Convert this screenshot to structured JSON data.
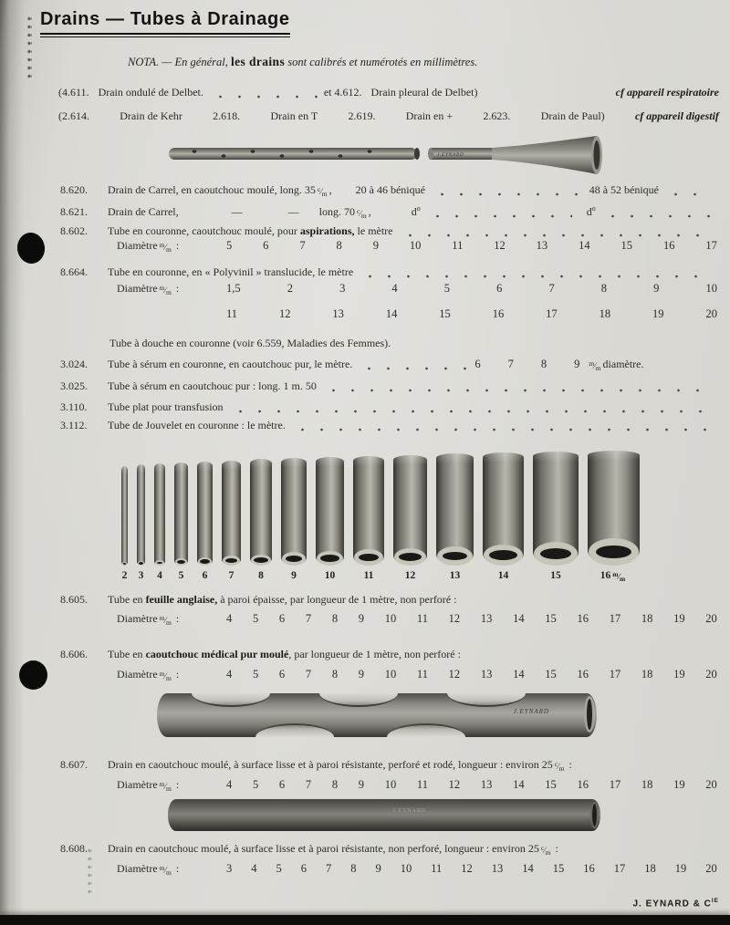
{
  "page": {
    "title": "Drains — Tubes à Drainage",
    "footer_main": "J. EYNARD & C",
    "footer_sup": "IE"
  },
  "units": {
    "mm": {
      "top": "m",
      "bot": "m"
    },
    "cm": {
      "top": "c",
      "bot": "m"
    }
  },
  "nota": {
    "label": "NOTA.",
    "dash": "—",
    "pre": "En général,",
    "bold": "les drains",
    "post": "sont calibrés et numérotés en millimètres."
  },
  "group_resp": {
    "n1": "(4.611.",
    "t1": "Drain ondulé de Delbet.",
    "n2": "et 4.612.",
    "t2": "Drain pleural de Delbet)",
    "cf": "cf appareil respiratoire"
  },
  "group_dig": {
    "n1": "(2.614.",
    "t1": "Drain de Kehr",
    "n2": "2.618.",
    "t2": "Drain en T",
    "n3": "2.619.",
    "t3": "Drain en +",
    "n4": "2.623.",
    "t4": "Drain de Paul)",
    "cf": "cf appareil digestif"
  },
  "brands": {
    "drain": "J.EYNARD",
    "perforated": "J.EYNARD",
    "smooth": "J.EYNARD"
  },
  "rows": {
    "r8620": {
      "num": "8.620.",
      "desc": "Drain de Carrel, en caoutchouc moulé, long. 35",
      "comma": ",",
      "r1": "20 à 46 béniqué",
      "r2": "48 à 52 béniqué"
    },
    "r8621": {
      "num": "8.621.",
      "desc": "Drain de Carrel,",
      "dash": "—",
      "long": "long. 70",
      "comma": ",",
      "ditto": "d",
      "ditto_sup": "o"
    },
    "r8602": {
      "num": "8.602.",
      "pre": "Tube en couronne, caoutchouc moulé, pour ",
      "bold": "aspirations,",
      "post": " le mètre"
    },
    "r8664": {
      "num": "8.664.",
      "desc": "Tube en couronne, en « Polyvinil » translucide, le mètre"
    },
    "douche": {
      "desc": "Tube à douche en couronne (voir 6.559, Maladies des Femmes)."
    },
    "r3024": {
      "num": "3.024.",
      "desc": "Tube à sérum en couronne, en caoutchouc pur, le mètre.",
      "tail": "diamètre."
    },
    "r3025": {
      "num": "3.025.",
      "desc": "Tube à sérum en caoutchouc pur : long. 1 m. 50"
    },
    "r3110": {
      "num": "3.110.",
      "desc": "Tube plat pour transfusion"
    },
    "r3112": {
      "num": "3.112.",
      "desc": "Tube de Jouvelet en couronne : le mètre."
    },
    "r8605": {
      "num": "8.605.",
      "pre": "Tube en ",
      "bold": "feuille anglaise,",
      "post": " à paroi épaisse, par longueur de 1 mètre, non perforé :"
    },
    "r8606": {
      "num": "8.606.",
      "pre": "Tube en ",
      "bold": "caoutchouc médical pur moulé",
      "post": ", par longueur de 1 mètre, non perforé :"
    },
    "r8607": {
      "num": "8.607.",
      "desc": "Drain en caoutchouc moulé, à surface lisse et à paroi résistante, perforé et rodé, longueur : environ 25",
      "colon": ":"
    },
    "r8608": {
      "num": "8.608.",
      "desc": "Drain en caoutchouc moulé, à surface lisse et à paroi résistante, non perforé, longueur : environ 25",
      "colon": ":"
    }
  },
  "diam": {
    "label": "Diamètre",
    "colon": ":",
    "r8602": [
      "5",
      "6",
      "7",
      "8",
      "9",
      "10",
      "11",
      "12",
      "13",
      "14",
      "15",
      "16",
      "17"
    ],
    "r8664a": [
      "1,5",
      "2",
      "3",
      "4",
      "5",
      "6",
      "7",
      "8",
      "9",
      "10"
    ],
    "r8664b": [
      "11",
      "12",
      "13",
      "14",
      "15",
      "16",
      "17",
      "18",
      "19",
      "20"
    ],
    "r3024": [
      "6",
      "7",
      "8",
      "9"
    ],
    "r8605": [
      "4",
      "5",
      "6",
      "7",
      "8",
      "9",
      "10",
      "11",
      "12",
      "13",
      "14",
      "15",
      "16",
      "17",
      "18",
      "19",
      "20"
    ],
    "r8606": [
      "4",
      "5",
      "6",
      "7",
      "8",
      "9",
      "10",
      "11",
      "12",
      "13",
      "14",
      "15",
      "16",
      "17",
      "18",
      "19",
      "20"
    ],
    "r8607": [
      "4",
      "5",
      "6",
      "7",
      "8",
      "9",
      "10",
      "11",
      "12",
      "13",
      "14",
      "15",
      "16",
      "17",
      "18",
      "19",
      "20"
    ],
    "r8608": [
      "3",
      "4",
      "5",
      "6",
      "7",
      "8",
      "9",
      "10",
      "11",
      "12",
      "13",
      "14",
      "15",
      "16",
      "17",
      "18",
      "19",
      "20"
    ]
  },
  "tube_figure": {
    "labels": [
      "2",
      "3",
      "4",
      "5",
      "6",
      "7",
      "8",
      "9",
      "10",
      "11",
      "12",
      "13",
      "14",
      "15",
      "16"
    ]
  }
}
